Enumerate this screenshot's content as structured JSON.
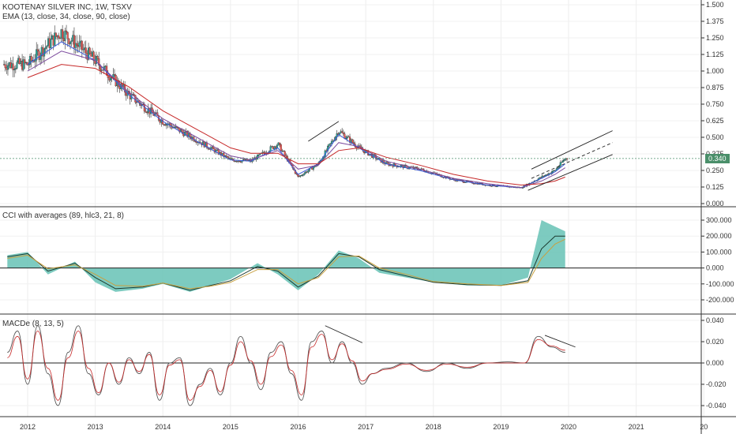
{
  "panes": {
    "price": {
      "title": "KOOTENAY SILVER INC, 1W, TSXV",
      "indicator": "EMA (13, close, 34, close, 90, close)",
      "yticks": [
        "1.500",
        "1.375",
        "1.250",
        "1.125",
        "1.000",
        "0.875",
        "0.750",
        "0.625",
        "0.500",
        "0.375",
        "0.250",
        "0.125",
        "0.000"
      ],
      "current_price": "0.340"
    },
    "cci": {
      "title": "CCI with averages (89, hlc3, 21, 8)",
      "yticks": [
        "300.000",
        "200.000",
        "100.000",
        "0.000",
        "-100.000",
        "-200.000"
      ]
    },
    "macd": {
      "title": "MACDe (8, 13, 5)",
      "yticks": [
        "0.040",
        "0.020",
        "0.000",
        "-0.020",
        "-0.040"
      ]
    }
  },
  "xticks": [
    "2012",
    "2013",
    "2014",
    "2015",
    "2016",
    "2017",
    "2018",
    "2019",
    "2020",
    "2021",
    "20"
  ],
  "colors": {
    "up": "#26a69a",
    "down": "#ef5350",
    "ema_fast": "#3b5bdb",
    "ema_mid": "#7c4b9e",
    "ema_slow": "#c62828",
    "cci_fill": "#66c2b5",
    "cci_line": "#1b3a2f",
    "cci_avg": "#c8a040",
    "macd": "#555555",
    "signal": "#c62828",
    "price_line": "#4a8f6a"
  },
  "chart_data": [
    {
      "type": "candlestick",
      "title": "KOOTENAY SILVER INC, 1W, TSXV",
      "ylim": [
        0,
        1.5
      ],
      "x": [
        2012.0,
        2012.5,
        2013.0,
        2013.5,
        2014.0,
        2014.5,
        2015.0,
        2015.3,
        2015.7,
        2016.0,
        2016.3,
        2016.6,
        2016.9,
        2017.3,
        2017.8,
        2018.3,
        2018.8,
        2019.3,
        2019.6,
        2019.8,
        2019.95
      ],
      "close": [
        1.05,
        1.3,
        1.08,
        0.82,
        0.62,
        0.48,
        0.33,
        0.32,
        0.45,
        0.2,
        0.3,
        0.55,
        0.42,
        0.3,
        0.26,
        0.18,
        0.14,
        0.12,
        0.2,
        0.25,
        0.34
      ],
      "series": [
        {
          "name": "EMA 13",
          "values": [
            1.05,
            1.22,
            1.08,
            0.82,
            0.62,
            0.47,
            0.33,
            0.32,
            0.42,
            0.22,
            0.3,
            0.52,
            0.42,
            0.3,
            0.25,
            0.18,
            0.14,
            0.12,
            0.19,
            0.24,
            0.3
          ]
        },
        {
          "name": "EMA 34",
          "values": [
            1.0,
            1.15,
            1.08,
            0.84,
            0.64,
            0.5,
            0.36,
            0.33,
            0.4,
            0.26,
            0.29,
            0.46,
            0.43,
            0.32,
            0.26,
            0.19,
            0.15,
            0.12,
            0.17,
            0.22,
            0.27
          ]
        },
        {
          "name": "EMA 90",
          "values": [
            0.95,
            1.05,
            1.02,
            0.88,
            0.7,
            0.56,
            0.42,
            0.38,
            0.38,
            0.3,
            0.3,
            0.4,
            0.42,
            0.35,
            0.29,
            0.22,
            0.17,
            0.14,
            0.15,
            0.17,
            0.2
          ]
        }
      ]
    },
    {
      "type": "area",
      "title": "CCI with averages (89, hlc3, 21, 8)",
      "ylim": [
        -230,
        320
      ],
      "x": [
        2011.7,
        2012.0,
        2012.3,
        2012.7,
        2013.0,
        2013.3,
        2013.7,
        2014.0,
        2014.4,
        2014.7,
        2015.0,
        2015.4,
        2015.7,
        2016.0,
        2016.3,
        2016.6,
        2016.9,
        2017.2,
        2017.6,
        2018.0,
        2018.5,
        2019.0,
        2019.4,
        2019.6,
        2019.8,
        2019.95
      ],
      "values": [
        80,
        100,
        -40,
        40,
        -90,
        -150,
        -130,
        -100,
        -150,
        -110,
        -70,
        30,
        -40,
        -140,
        -40,
        110,
        60,
        -30,
        -60,
        -90,
        -110,
        -110,
        -60,
        300,
        260,
        230
      ],
      "series": [
        {
          "name": "avg21",
          "values": [
            70,
            90,
            -20,
            30,
            -60,
            -130,
            -120,
            -95,
            -140,
            -110,
            -80,
            10,
            -20,
            -120,
            -50,
            90,
            70,
            -10,
            -50,
            -90,
            -105,
            -110,
            -80,
            120,
            200,
            200
          ]
        },
        {
          "name": "avg8",
          "values": [
            60,
            80,
            -5,
            20,
            -40,
            -110,
            -115,
            -95,
            -130,
            -115,
            -90,
            -10,
            -10,
            -100,
            -60,
            70,
            75,
            0,
            -40,
            -85,
            -100,
            -110,
            -90,
            60,
            150,
            180
          ]
        }
      ]
    },
    {
      "type": "line",
      "title": "MACDe (8, 13, 5)",
      "ylim": [
        -0.045,
        0.042
      ],
      "x": [
        2011.7,
        2011.85,
        2012.0,
        2012.15,
        2012.3,
        2012.45,
        2012.6,
        2012.75,
        2012.9,
        2013.05,
        2013.2,
        2013.35,
        2013.5,
        2013.65,
        2013.8,
        2013.95,
        2014.1,
        2014.25,
        2014.4,
        2014.55,
        2014.7,
        2014.85,
        2015.0,
        2015.15,
        2015.3,
        2015.45,
        2015.6,
        2015.75,
        2015.9,
        2016.05,
        2016.2,
        2016.35,
        2016.5,
        2016.65,
        2016.8,
        2016.95,
        2017.1,
        2017.3,
        2017.6,
        2017.9,
        2018.2,
        2018.5,
        2018.8,
        2019.1,
        2019.35,
        2019.55,
        2019.75,
        2019.95
      ],
      "values": [
        0.01,
        0.03,
        -0.02,
        0.035,
        -0.01,
        -0.04,
        0.01,
        0.035,
        -0.01,
        -0.03,
        0.0,
        -0.02,
        0.005,
        -0.01,
        0.01,
        -0.035,
        0.0,
        0.005,
        -0.04,
        -0.02,
        -0.005,
        -0.03,
        0.0,
        0.025,
        0.0,
        -0.025,
        0.01,
        0.02,
        -0.01,
        -0.035,
        0.02,
        0.03,
        0.0,
        0.02,
        0.0,
        -0.02,
        -0.01,
        -0.005,
        0.0,
        -0.008,
        0.0,
        -0.005,
        0.0,
        0.001,
        0.0,
        0.025,
        0.015,
        0.01
      ],
      "series": [
        {
          "name": "signal",
          "values": [
            0.005,
            0.025,
            -0.015,
            0.03,
            -0.005,
            -0.035,
            0.005,
            0.03,
            -0.005,
            -0.028,
            0.0,
            -0.018,
            0.003,
            -0.008,
            0.008,
            -0.03,
            -0.002,
            0.003,
            -0.035,
            -0.022,
            -0.007,
            -0.027,
            -0.002,
            0.02,
            0.002,
            -0.02,
            0.006,
            0.017,
            -0.007,
            -0.03,
            0.015,
            0.027,
            0.003,
            0.018,
            0.002,
            -0.017,
            -0.01,
            -0.006,
            -0.001,
            -0.007,
            -0.001,
            -0.004,
            0.0,
            0.0,
            0.0,
            0.022,
            0.016,
            0.012
          ]
        }
      ]
    }
  ]
}
